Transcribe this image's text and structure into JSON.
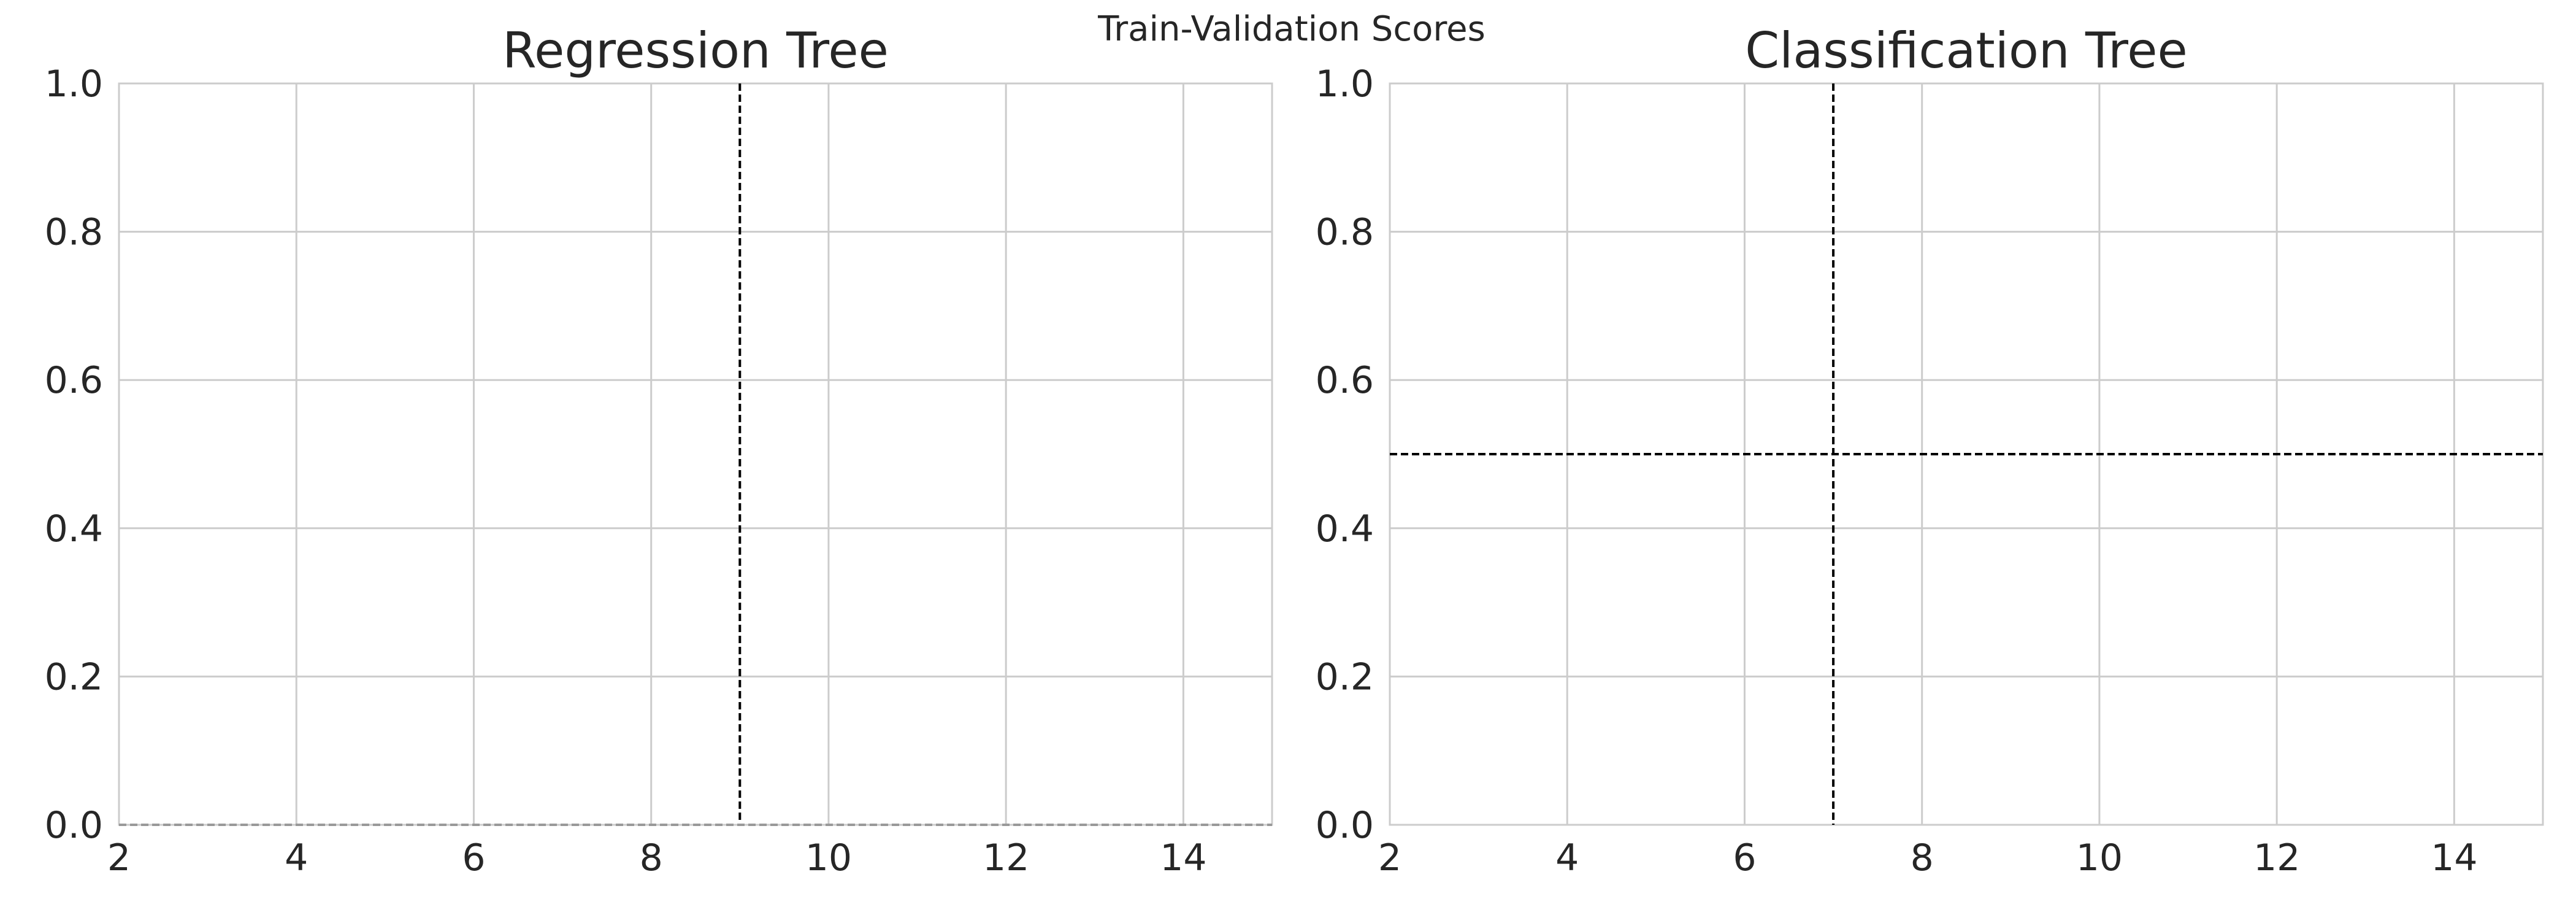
{
  "suptitle": "Train-Validation Scores",
  "chart_data": [
    {
      "type": "line",
      "title": "Regression Tree",
      "xlabel": "",
      "ylabel": "",
      "xlim": [
        2,
        15
      ],
      "ylim": [
        0,
        1
      ],
      "xticks": [
        2,
        4,
        6,
        8,
        10,
        12,
        14
      ],
      "xtick_labels": [
        "2",
        "4",
        "6",
        "8",
        "10",
        "12",
        "14"
      ],
      "yticks": [
        0,
        0.2,
        0.4,
        0.6,
        0.8,
        1.0
      ],
      "ytick_labels": [
        "0.0",
        "0.2",
        "0.4",
        "0.6",
        "0.8",
        "1.0"
      ],
      "grid": true,
      "series": [],
      "reference_lines": [
        {
          "orientation": "vertical",
          "value": 9,
          "style": "dashed",
          "color": "#000000"
        },
        {
          "orientation": "horizontal",
          "value": 0,
          "style": "dashed",
          "color": "#999999"
        }
      ]
    },
    {
      "type": "line",
      "title": "Classification Tree",
      "xlabel": "",
      "ylabel": "",
      "xlim": [
        2,
        15
      ],
      "ylim": [
        0,
        1
      ],
      "xticks": [
        2,
        4,
        6,
        8,
        10,
        12,
        14
      ],
      "xtick_labels": [
        "2",
        "4",
        "6",
        "8",
        "10",
        "12",
        "14"
      ],
      "yticks": [
        0,
        0.2,
        0.4,
        0.6,
        0.8,
        1.0
      ],
      "ytick_labels": [
        "0.0",
        "0.2",
        "0.4",
        "0.6",
        "0.8",
        "1.0"
      ],
      "grid": true,
      "series": [],
      "reference_lines": [
        {
          "orientation": "vertical",
          "value": 7,
          "style": "dashed",
          "color": "#000000"
        },
        {
          "orientation": "horizontal",
          "value": 0.5,
          "style": "dashed",
          "color": "#000000"
        }
      ]
    }
  ],
  "colors": {
    "grid": "#cccccc",
    "frame": "#cccccc",
    "text": "#262626"
  }
}
